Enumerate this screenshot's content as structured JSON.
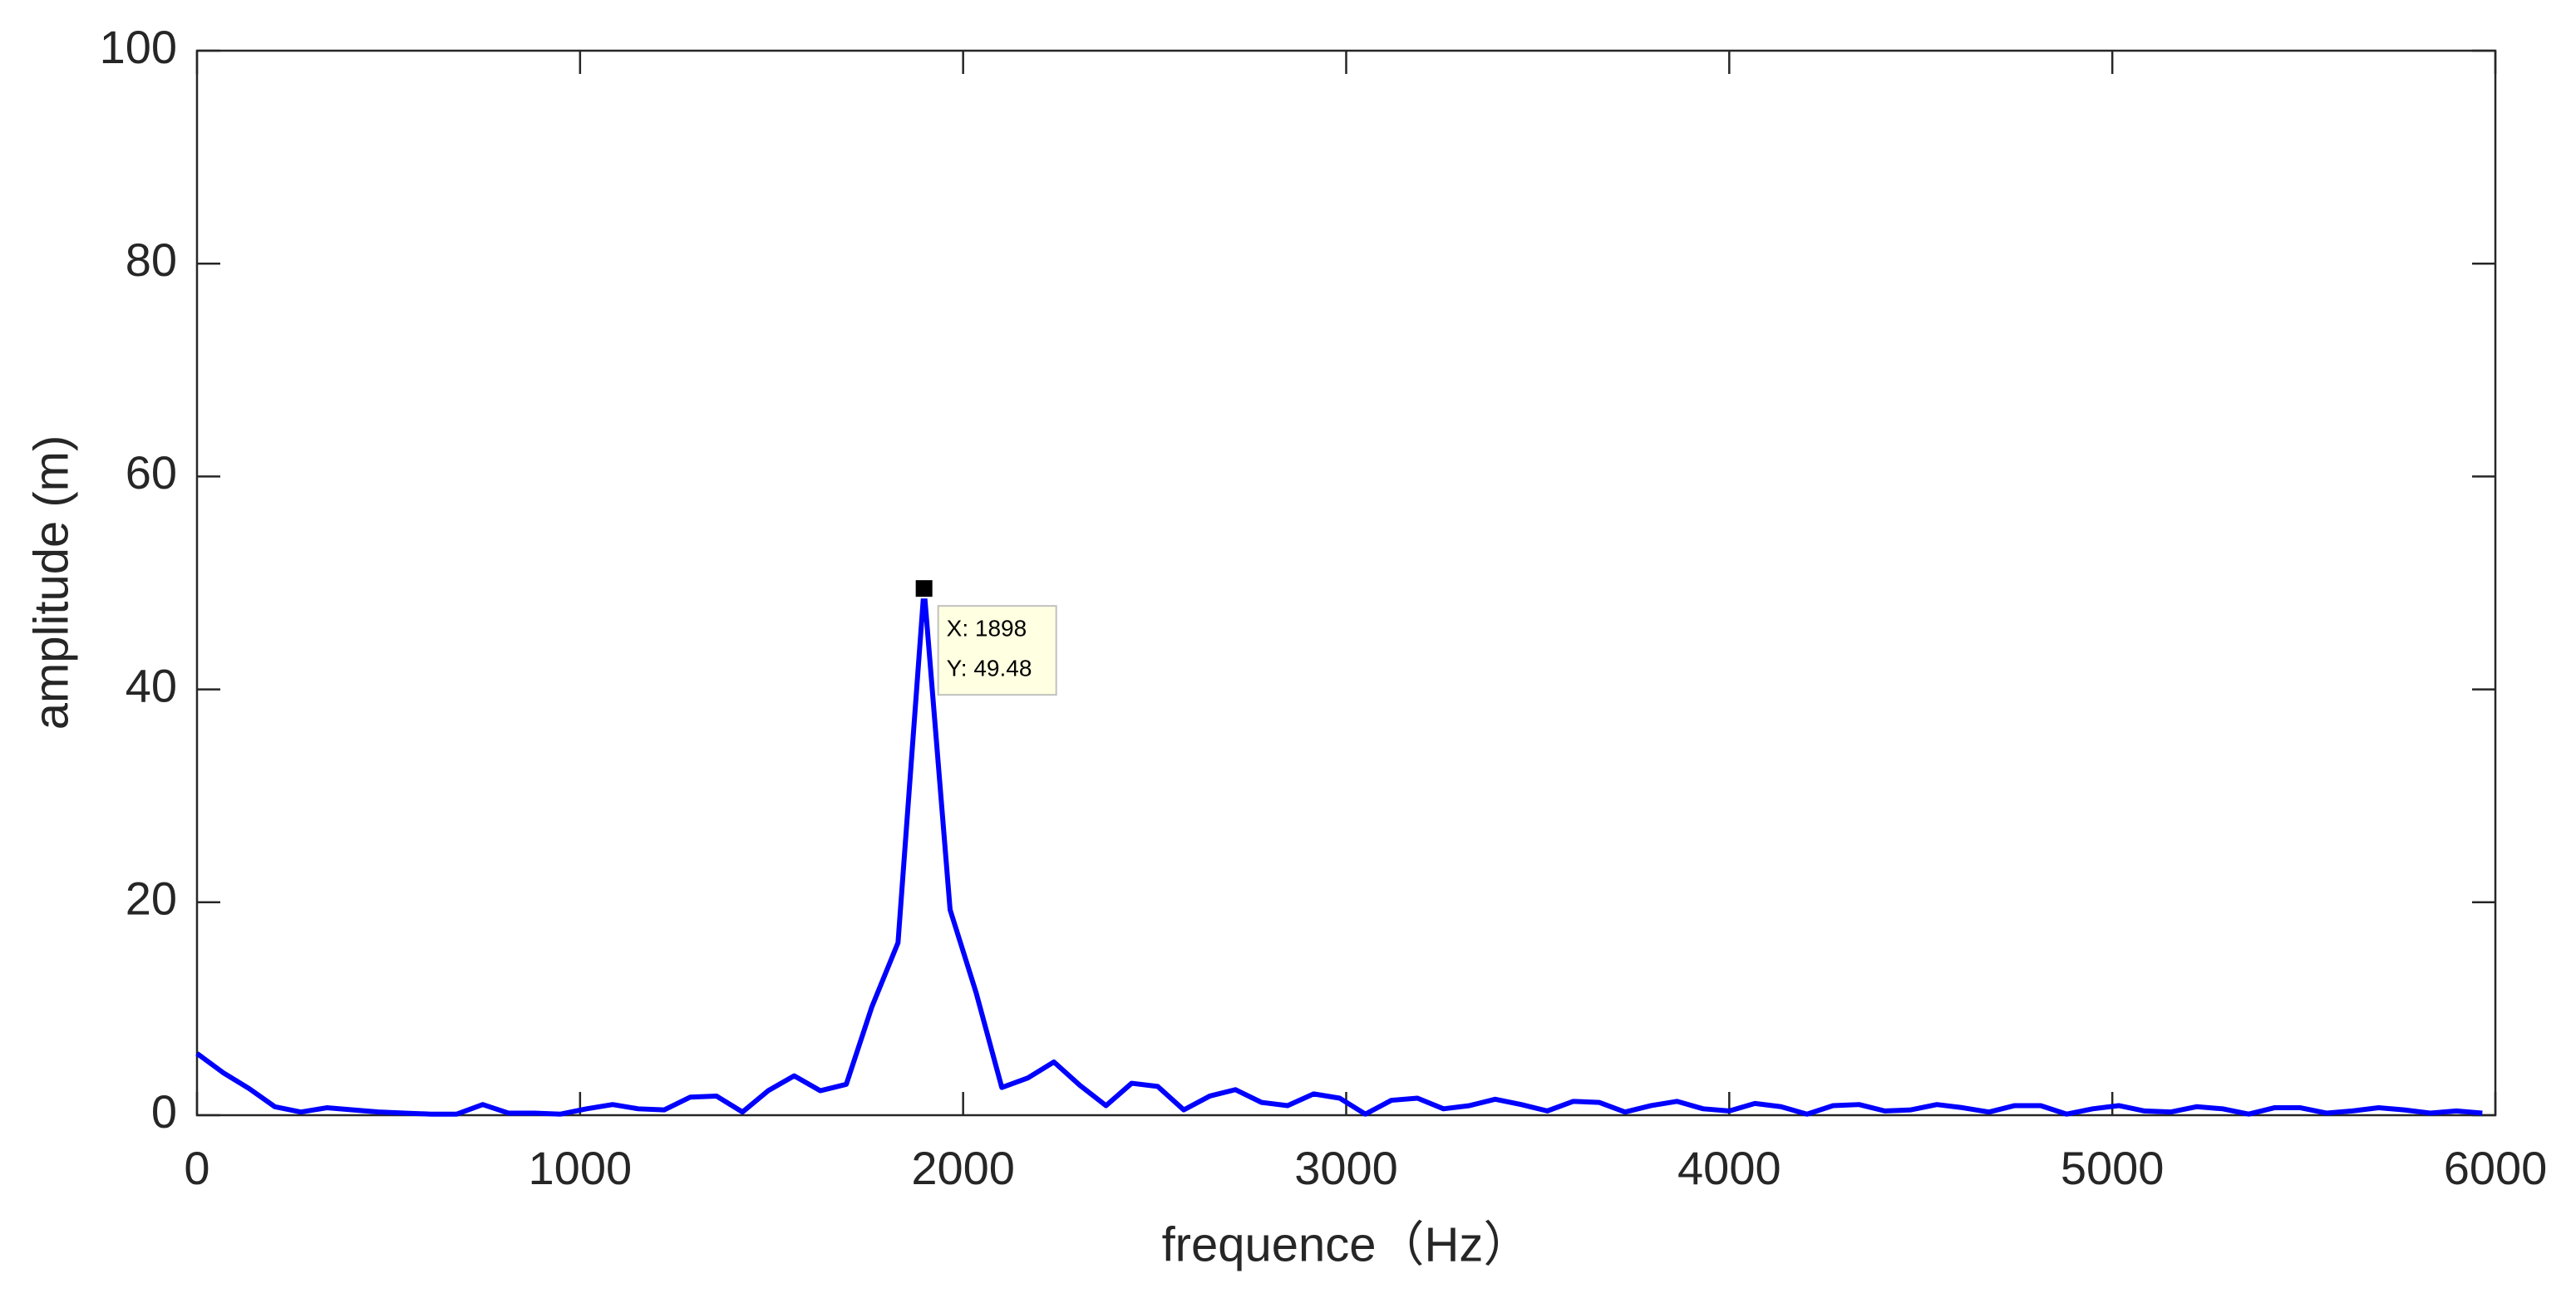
{
  "chart_data": {
    "type": "line",
    "xlabel": "frequence（Hz）",
    "ylabel": "amplitude (m)",
    "x": [
      0,
      68,
      136,
      203,
      271,
      339,
      407,
      474,
      542,
      610,
      678,
      746,
      813,
      881,
      949,
      1017,
      1085,
      1152,
      1220,
      1288,
      1356,
      1424,
      1491,
      1559,
      1627,
      1695,
      1762,
      1830,
      1898,
      1966,
      2034,
      2101,
      2169,
      2237,
      2305,
      2373,
      2440,
      2508,
      2576,
      2644,
      2711,
      2779,
      2847,
      2915,
      2983,
      3050,
      3118,
      3186,
      3254,
      3322,
      3389,
      3457,
      3525,
      3593,
      3661,
      3728,
      3796,
      3864,
      3932,
      4000,
      4067,
      4135,
      4203,
      4271,
      4339,
      4406,
      4474,
      4542,
      4610,
      4678,
      4745,
      4813,
      4881,
      4949,
      5017,
      5084,
      5152,
      5220,
      5288,
      5356,
      5423,
      5491,
      5559,
      5627,
      5695,
      5762,
      5830,
      5898,
      5966
    ],
    "values": [
      5.8,
      4.0,
      2.5,
      0.8,
      0.3,
      0.7,
      0.5,
      0.3,
      0.2,
      0.1,
      0.1,
      1.0,
      0.2,
      0.2,
      0.1,
      0.6,
      1.0,
      0.6,
      0.5,
      1.7,
      1.8,
      0.3,
      2.3,
      3.7,
      2.3,
      2.9,
      10.2,
      16.2,
      49.48,
      19.3,
      11.5,
      2.6,
      3.5,
      5.0,
      2.8,
      0.9,
      3.0,
      2.7,
      0.5,
      1.8,
      2.4,
      1.2,
      0.9,
      2.0,
      1.6,
      0.1,
      1.4,
      1.6,
      0.6,
      0.9,
      1.5,
      1.0,
      0.4,
      1.3,
      1.2,
      0.3,
      0.9,
      1.3,
      0.6,
      0.4,
      1.1,
      0.8,
      0.1,
      0.9,
      1.0,
      0.4,
      0.5,
      1.0,
      0.7,
      0.3,
      0.9,
      0.9,
      0.1,
      0.6,
      0.9,
      0.4,
      0.3,
      0.8,
      0.6,
      0.1,
      0.7,
      0.7,
      0.2,
      0.4,
      0.7,
      0.5,
      0.2,
      0.4,
      0.2
    ],
    "color": "#0000ff",
    "xlim": [
      0,
      6000
    ],
    "xticks": [
      0,
      1000,
      2000,
      3000,
      4000,
      5000,
      6000
    ],
    "ylim": [
      0,
      100
    ],
    "yticks": [
      0,
      20,
      40,
      60,
      80,
      100
    ],
    "grid": false,
    "datatip": {
      "x": 1898,
      "y": 49.48,
      "lines": [
        "X: 1898",
        "Y: 49.48"
      ]
    }
  }
}
